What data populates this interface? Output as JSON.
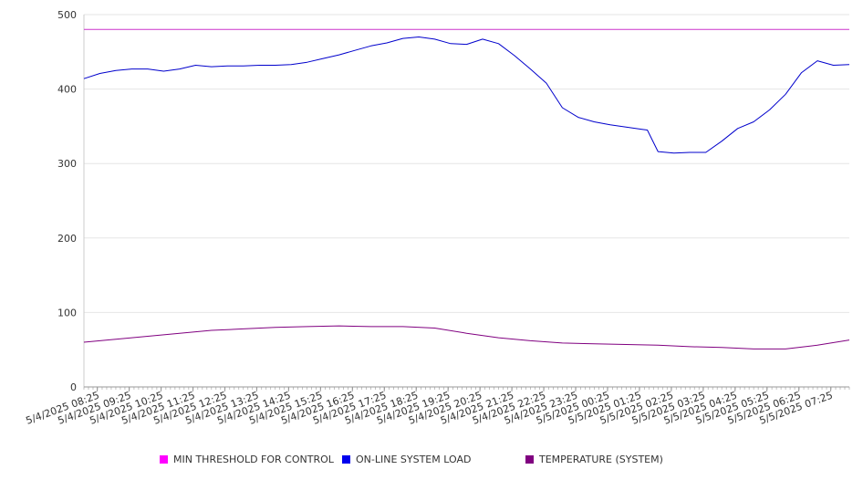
{
  "chart_data": {
    "type": "line",
    "title": "",
    "xlabel": "",
    "ylabel": "",
    "ylim": [
      0,
      500
    ],
    "yticks": [
      0,
      100,
      200,
      300,
      400,
      500
    ],
    "grid": "horizontal",
    "legend_position": "bottom",
    "x_range": [
      "5/4/2025 08:00",
      "5/5/2025 08:00"
    ],
    "x_tick_labels": [
      "5/4/2025 08:25",
      "5/4/2025 09:25",
      "5/4/2025 10:25",
      "5/4/2025 11:25",
      "5/4/2025 12:25",
      "5/4/2025 13:25",
      "5/4/2025 14:25",
      "5/4/2025 15:25",
      "5/4/2025 16:25",
      "5/4/2025 17:25",
      "5/4/2025 18:25",
      "5/4/2025 19:25",
      "5/4/2025 20:25",
      "5/4/2025 21:25",
      "5/4/2025 22:25",
      "5/4/2025 23:25",
      "5/5/2025 00:25",
      "5/5/2025 01:25",
      "5/5/2025 02:25",
      "5/5/2025 03:25",
      "5/5/2025 04:25",
      "5/5/2025 05:25",
      "5/5/2025 06:25",
      "5/5/2025 07:25"
    ],
    "series": [
      {
        "name": "MIN THRESHOLD FOR CONTROL",
        "color": "#cc33cc",
        "x": [
          "5/4/2025 08:00",
          "5/5/2025 08:00"
        ],
        "values": [
          480,
          480
        ]
      },
      {
        "name": "ON-LINE SYSTEM LOAD",
        "color": "#0000cc",
        "x": [
          "5/4/2025 08:00",
          "5/4/2025 08:30",
          "5/4/2025 09:00",
          "5/4/2025 09:30",
          "5/4/2025 10:00",
          "5/4/2025 10:30",
          "5/4/2025 11:00",
          "5/4/2025 11:30",
          "5/4/2025 12:00",
          "5/4/2025 12:30",
          "5/4/2025 13:00",
          "5/4/2025 13:30",
          "5/4/2025 14:00",
          "5/4/2025 14:30",
          "5/4/2025 15:00",
          "5/4/2025 15:30",
          "5/4/2025 16:00",
          "5/4/2025 16:30",
          "5/4/2025 17:00",
          "5/4/2025 17:30",
          "5/4/2025 18:00",
          "5/4/2025 18:30",
          "5/4/2025 19:00",
          "5/4/2025 19:30",
          "5/4/2025 20:00",
          "5/4/2025 20:30",
          "5/4/2025 21:00",
          "5/4/2025 21:30",
          "5/4/2025 22:00",
          "5/4/2025 22:30",
          "5/4/2025 23:00",
          "5/4/2025 23:30",
          "5/5/2025 00:00",
          "5/5/2025 00:30",
          "5/5/2025 01:00",
          "5/5/2025 01:30",
          "5/5/2025 01:40",
          "5/5/2025 02:00",
          "5/5/2025 02:30",
          "5/5/2025 03:00",
          "5/5/2025 03:30",
          "5/5/2025 04:00",
          "5/5/2025 04:30",
          "5/5/2025 05:00",
          "5/5/2025 05:30",
          "5/5/2025 06:00",
          "5/5/2025 06:30",
          "5/5/2025 07:00",
          "5/5/2025 07:30",
          "5/5/2025 08:00"
        ],
        "values": [
          414,
          421,
          425,
          427,
          427,
          424,
          427,
          432,
          430,
          431,
          431,
          432,
          432,
          433,
          436,
          441,
          446,
          452,
          458,
          462,
          468,
          470,
          467,
          461,
          460,
          467,
          461,
          445,
          427,
          408,
          375,
          362,
          356,
          352,
          349,
          346,
          345,
          316,
          314,
          315,
          315,
          330,
          347,
          356,
          372,
          393,
          422,
          438,
          432,
          433
        ]
      },
      {
        "name": "TEMPERATURE (SYSTEM)",
        "color": "#800080",
        "x": [
          "5/4/2025 08:00",
          "5/4/2025 09:00",
          "5/4/2025 10:00",
          "5/4/2025 11:00",
          "5/4/2025 12:00",
          "5/4/2025 13:00",
          "5/4/2025 14:00",
          "5/4/2025 15:00",
          "5/4/2025 16:00",
          "5/4/2025 17:00",
          "5/4/2025 18:00",
          "5/4/2025 19:00",
          "5/4/2025 20:00",
          "5/4/2025 21:00",
          "5/4/2025 22:00",
          "5/4/2025 23:00",
          "5/5/2025 00:00",
          "5/5/2025 01:00",
          "5/5/2025 02:00",
          "5/5/2025 03:00",
          "5/5/2025 04:00",
          "5/5/2025 05:00",
          "5/5/2025 06:00",
          "5/5/2025 07:00",
          "5/5/2025 08:00"
        ],
        "values": [
          60,
          64,
          68,
          72,
          76,
          78,
          80,
          81,
          82,
          81,
          81,
          79,
          72,
          66,
          62,
          59,
          58,
          57,
          56,
          54,
          53,
          51,
          51,
          56,
          63
        ]
      }
    ]
  }
}
